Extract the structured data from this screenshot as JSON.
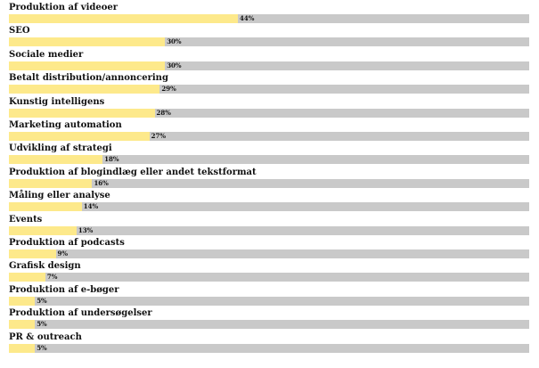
{
  "chart_data": {
    "type": "bar",
    "orientation": "horizontal",
    "categories": [
      "Produktion af videoer",
      "SEO",
      "Sociale medier",
      "Betalt distribution/annoncering",
      "Kunstig intelligens",
      "Marketing automation",
      "Udvikling af strategi",
      "Produktion af blogindlæg eller andet tekstformat",
      "Måling eller analyse",
      "Events",
      "Produktion af podcasts",
      "Grafisk design",
      "Produktion af e-bøger",
      "Produktion af undersøgelser",
      "PR & outreach"
    ],
    "values": [
      44,
      30,
      30,
      29,
      28,
      27,
      18,
      16,
      14,
      13,
      9,
      7,
      5,
      5,
      5
    ],
    "value_labels": [
      "44%",
      "30%",
      "30%",
      "29%",
      "28%",
      "27%",
      "18%",
      "16%",
      "14%",
      "13%",
      "9%",
      "7%",
      "5%",
      "5%",
      "5%"
    ],
    "xlim": [
      0,
      100
    ],
    "grid": false,
    "legend": "none",
    "colors": {
      "fill": "#fde98b",
      "track": "#c9c9c9",
      "text": "#111111"
    }
  }
}
